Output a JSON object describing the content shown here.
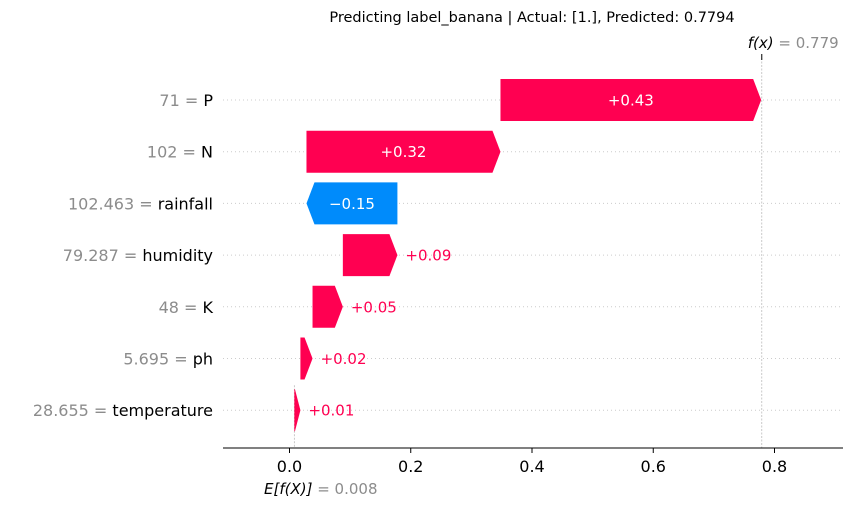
{
  "chart_data": {
    "type": "waterfall",
    "title": "Predicting label_banana | Actual: [1.], Predicted: 0.7794",
    "base_value": 0.008,
    "base_label_expr": "E[f(X)]",
    "base_label_value": "= 0.008",
    "output_value": 0.779,
    "output_label_expr": "f(x)",
    "output_label_value": "= 0.779",
    "xlim": [
      -0.11,
      0.91
    ],
    "xticks": [
      0.0,
      0.2,
      0.4,
      0.6,
      0.8
    ],
    "xtick_labels": [
      "0.0",
      "0.2",
      "0.4",
      "0.6",
      "0.8"
    ],
    "grid": false,
    "features": [
      {
        "value_text": "71",
        "name": "P",
        "contribution": 0.43,
        "label": "+0.43"
      },
      {
        "value_text": "102",
        "name": "N",
        "contribution": 0.32,
        "label": "+0.32"
      },
      {
        "value_text": "102.463",
        "name": "rainfall",
        "contribution": -0.15,
        "label": "−0.15"
      },
      {
        "value_text": "79.287",
        "name": "humidity",
        "contribution": 0.09,
        "label": "+0.09"
      },
      {
        "value_text": "48",
        "name": "K",
        "contribution": 0.05,
        "label": "+0.05"
      },
      {
        "value_text": "5.695",
        "name": "ph",
        "contribution": 0.02,
        "label": "+0.02"
      },
      {
        "value_text": "28.655",
        "name": "temperature",
        "contribution": 0.01,
        "label": "+0.01"
      }
    ],
    "colors": {
      "positive": "#ff0051",
      "negative": "#008bfb",
      "muted_text": "#8c8c8c"
    }
  }
}
